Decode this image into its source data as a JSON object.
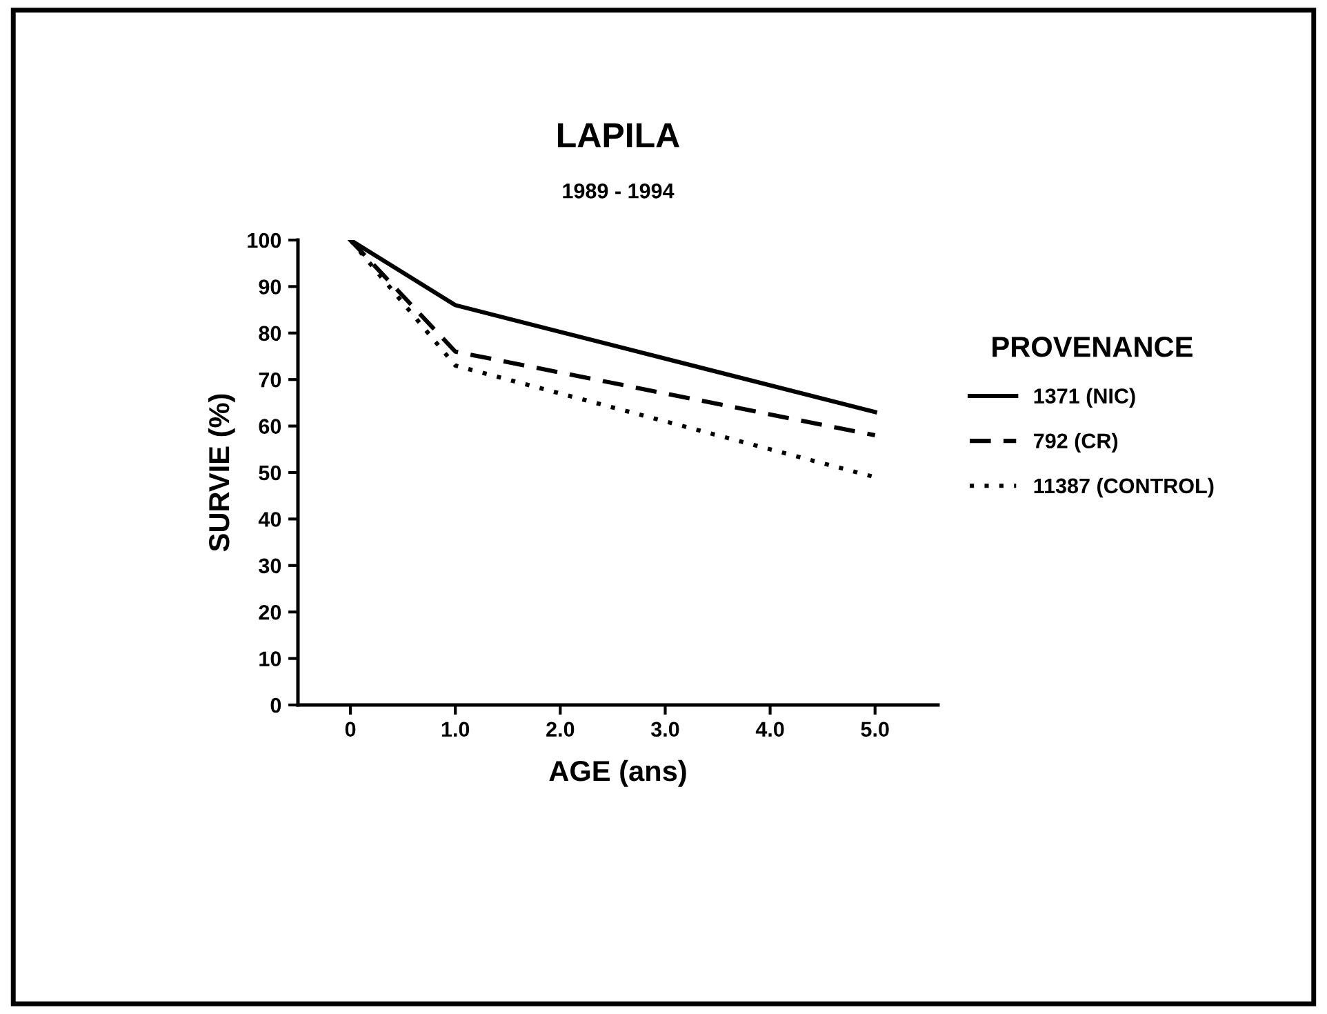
{
  "chart_data": {
    "type": "line",
    "title": "LAPILA",
    "subtitle": "1989 - 1994",
    "xlabel": "AGE (ans)",
    "ylabel": "SURVIE (%)",
    "legend_title": "PROVENANCE",
    "x": [
      0,
      1,
      5
    ],
    "series": [
      {
        "name": "1371 (NIC)",
        "color": "#000000",
        "line_style": "solid",
        "values": [
          100,
          86,
          63
        ]
      },
      {
        "name": "792 (CR)",
        "color": "#000000",
        "line_style": "dashed",
        "values": [
          100,
          76,
          58
        ]
      },
      {
        "name": "11387 (CONTROL)",
        "color": "#000000",
        "line_style": "dotted",
        "values": [
          100,
          73,
          49
        ]
      }
    ],
    "xlim": [
      -0.5,
      5.6
    ],
    "ylim": [
      0,
      100
    ],
    "xticks": [
      0,
      {
        "value": 1,
        "label": "1.0"
      },
      {
        "value": 2,
        "label": "2.0"
      },
      {
        "value": 3,
        "label": "3.0"
      },
      {
        "value": 4,
        "label": "4.0"
      },
      {
        "value": 5,
        "label": "5.0"
      }
    ],
    "yticks": [
      0,
      10,
      20,
      30,
      40,
      50,
      60,
      70,
      80,
      90,
      100
    ],
    "grid": false,
    "legend": "right",
    "marker": "none"
  }
}
